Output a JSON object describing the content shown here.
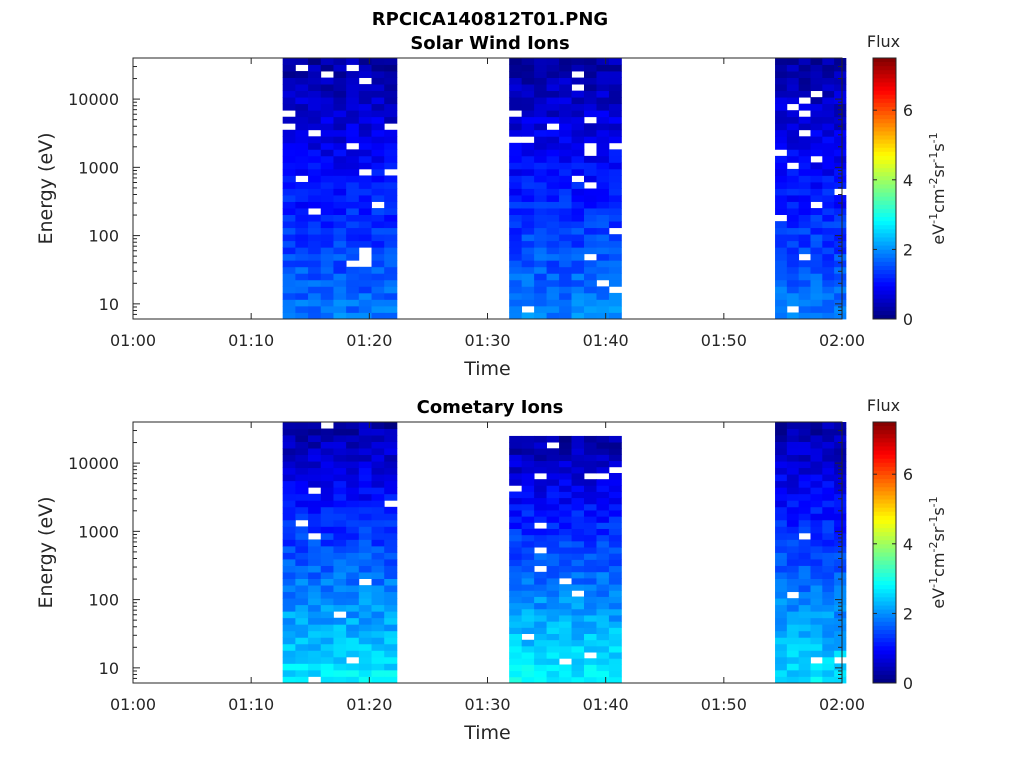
{
  "figure_title": "RPCICA140812T01.PNG",
  "colors": {
    "axis": "#262626",
    "colormap": [
      "#00007f",
      "#0000ff",
      "#007fff",
      "#00ffff",
      "#7fff7f",
      "#ffff00",
      "#ff7f00",
      "#ff0000",
      "#7f0000"
    ]
  },
  "chart_data": [
    {
      "type": "heatmap",
      "title": "Solar Wind Ions",
      "xlabel": "Time",
      "ylabel": "Energy (eV)",
      "xticks": [
        "01:00",
        "01:10",
        "01:20",
        "01:30",
        "01:40",
        "01:50",
        "02:00"
      ],
      "xlim_minutes": [
        0,
        60
      ],
      "yscale": "log",
      "ylim": [
        6,
        40000
      ],
      "yticks": [
        10,
        100,
        1000,
        10000
      ],
      "ytick_labels": [
        "10",
        "100",
        "1000",
        "10000"
      ],
      "colorbar": {
        "label": "Flux",
        "units": "eV-1cm-2sr-1s-1",
        "range": [
          0,
          7.5
        ],
        "ticks": [
          0,
          2,
          4,
          6
        ],
        "tick_labels": [
          "0",
          "2",
          "4",
          "6"
        ]
      },
      "data_blocks": [
        {
          "start": "01:12:40",
          "end": "01:22:20",
          "energy_min_eV": 6,
          "energy_max_eV": 40000,
          "flux_low_energy": 1.8,
          "flux_high_energy": 0.3
        },
        {
          "start": "01:31:50",
          "end": "01:41:20",
          "energy_min_eV": 6,
          "energy_max_eV": 40000,
          "flux_low_energy": 1.9,
          "flux_high_energy": 0.3
        },
        {
          "start": "01:54:20",
          "end": "02:00:20",
          "energy_min_eV": 6,
          "energy_max_eV": 40000,
          "flux_low_energy": 1.8,
          "flux_high_energy": 0.3
        }
      ]
    },
    {
      "type": "heatmap",
      "title": "Cometary Ions",
      "xlabel": "Time",
      "ylabel": "Energy (eV)",
      "xticks": [
        "01:00",
        "01:10",
        "01:20",
        "01:30",
        "01:40",
        "01:50",
        "02:00"
      ],
      "xlim_minutes": [
        0,
        60
      ],
      "yscale": "log",
      "ylim": [
        6,
        40000
      ],
      "yticks": [
        10,
        100,
        1000,
        10000
      ],
      "ytick_labels": [
        "10",
        "100",
        "1000",
        "10000"
      ],
      "colorbar": {
        "label": "Flux",
        "units": "eV-1cm-2sr-1s-1",
        "range": [
          0,
          7.5
        ],
        "ticks": [
          0,
          2,
          4,
          6
        ],
        "tick_labels": [
          "0",
          "2",
          "4",
          "6"
        ]
      },
      "data_blocks": [
        {
          "start": "01:12:40",
          "end": "01:22:20",
          "energy_min_eV": 6,
          "energy_max_eV": 40000,
          "flux_low_energy": 2.7,
          "flux_high_energy": 0.3
        },
        {
          "start": "01:31:50",
          "end": "01:41:20",
          "energy_min_eV": 6,
          "energy_max_eV": 25000,
          "flux_low_energy": 2.8,
          "flux_high_energy": 0.3
        },
        {
          "start": "01:54:20",
          "end": "02:00:20",
          "energy_min_eV": 6,
          "energy_max_eV": 40000,
          "flux_low_energy": 2.6,
          "flux_high_energy": 0.3
        }
      ]
    }
  ]
}
